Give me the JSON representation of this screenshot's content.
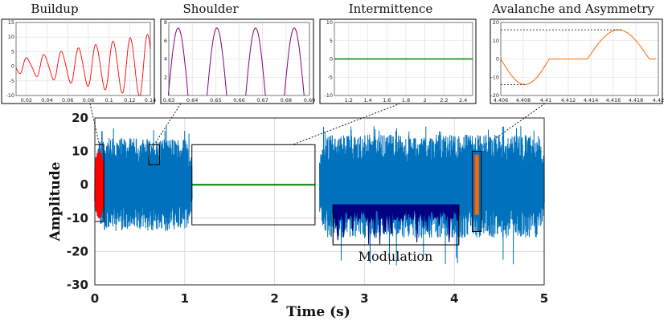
{
  "colors": {
    "signal": "#0072BD",
    "buildup": "#ff0000",
    "shoulder": "#800080",
    "intermittence": "#008000",
    "avalanche": "#ff6600",
    "modulation": "#000080",
    "box": "#000000",
    "grid": "#dcdcdc"
  },
  "chart_data": [
    {
      "id": "main",
      "type": "line",
      "title": "",
      "xlabel": "Time (s)",
      "ylabel": "Amplitude",
      "xlim": [
        0,
        5
      ],
      "ylim": [
        -30,
        20
      ],
      "xticks": [
        0,
        1,
        2,
        3,
        4,
        5
      ],
      "yticks": [
        -30,
        -20,
        -10,
        0,
        10,
        20
      ],
      "grid": true,
      "series": [
        {
          "segment": "noise-burst",
          "x": [
            0,
            1.08
          ],
          "envelope": [
            -14,
            14
          ],
          "peak": 18
        },
        {
          "segment": "buildup",
          "x": [
            0,
            0.1
          ],
          "envelope": [
            -10,
            10
          ]
        },
        {
          "segment": "shoulder",
          "x": [
            0.6,
            0.7
          ],
          "range": [
            2,
            12
          ]
        },
        {
          "segment": "intermittence",
          "x": [
            1.08,
            2.5
          ],
          "value": 0
        },
        {
          "segment": "noise-burst",
          "x": [
            2.5,
            5
          ],
          "envelope": [
            -16,
            15
          ],
          "peak": 18.5,
          "min": -24.5
        },
        {
          "segment": "modulation",
          "x": [
            2.65,
            4.05
          ],
          "range": [
            -17,
            -6
          ]
        },
        {
          "segment": "avalanche",
          "x": [
            4.2,
            4.3
          ],
          "range": [
            -9,
            9
          ]
        }
      ],
      "annotations": [
        {
          "label": "Modulation",
          "x": [
            2.65,
            4.05
          ],
          "y": [
            -18,
            -6
          ]
        }
      ],
      "boxes": [
        {
          "x": [
            0,
            0.1
          ],
          "y": [
            -11,
            12
          ]
        },
        {
          "x": [
            0.6,
            0.72
          ],
          "y": [
            6,
            12
          ]
        },
        {
          "x": [
            1.08,
            2.45
          ],
          "y": [
            -12,
            12
          ]
        },
        {
          "x": [
            4.2,
            4.3
          ],
          "y": [
            -14,
            10
          ]
        }
      ]
    },
    {
      "id": "buildup",
      "type": "line",
      "title": "Buildup",
      "xlim": [
        0.01,
        0.14
      ],
      "ylim": [
        -10,
        15
      ],
      "xticks": [
        "0.02",
        "0.04",
        "0.06",
        "0.08",
        "0.1",
        "0.12",
        "0.14"
      ],
      "yticks": [
        "-10",
        "-5",
        "0",
        "5",
        "10",
        "15"
      ],
      "grid": true,
      "series": [
        {
          "name": "",
          "x_start": 0.01,
          "x_end": 0.14,
          "frequency_hz": 60,
          "amp_start": 2,
          "amp_end": 11,
          "offset": 0
        }
      ]
    },
    {
      "id": "shoulder",
      "type": "line",
      "title": "Shoulder",
      "xlim": [
        0.63,
        0.69
      ],
      "ylim": [
        0,
        8
      ],
      "xticks": [
        "0.63",
        "0.64",
        "0.65",
        "0.66",
        "0.67",
        "0.68",
        "0.69"
      ],
      "yticks": [
        "2",
        "4",
        "6",
        "8"
      ],
      "grid": true,
      "series": [
        {
          "name": "",
          "arches": [
            0.634,
            0.6505,
            0.667,
            0.6835
          ],
          "half_width": 0.0042,
          "peak": 7.4
        }
      ]
    },
    {
      "id": "intermittence",
      "type": "line",
      "title": "Intermittence",
      "xlim": [
        1.05,
        2.5
      ],
      "ylim": [
        -10,
        10
      ],
      "xticks": [
        "1.2",
        "1.4",
        "1.6",
        "1.8",
        "2",
        "2.2",
        "2.4"
      ],
      "yticks": [
        "-10",
        "-5",
        "0",
        "5",
        "10"
      ],
      "grid": true,
      "series": [
        {
          "name": "",
          "x": [
            1.05,
            2.5
          ],
          "y": [
            0,
            0
          ]
        }
      ]
    },
    {
      "id": "avalanche",
      "type": "line",
      "title": "Avalanche and Asymmetry",
      "xlim": [
        4.406,
        4.42
      ],
      "ylim": [
        -20,
        20
      ],
      "xticks": [
        "4.406",
        "4.408",
        "4.41",
        "4.412",
        "4.414",
        "4.416",
        "4.418",
        "4.42"
      ],
      "yticks": [
        "-20",
        "-10",
        "0",
        "10",
        "20"
      ],
      "grid": true,
      "series": [
        {
          "name": "",
          "neg_arch": [
            4.406,
            4.4103
          ],
          "neg_peak": -14,
          "flat": [
            4.4103,
            4.4114
          ],
          "step_up": 4.4114,
          "pos_arch": [
            4.4137,
            4.4192
          ],
          "pos_peak": 16
        }
      ],
      "guides": [
        16,
        -14
      ]
    }
  ]
}
